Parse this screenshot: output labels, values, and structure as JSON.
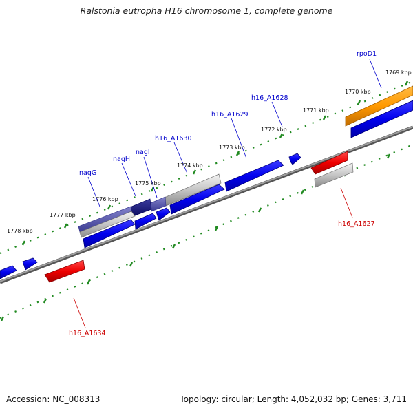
{
  "title": "Ralstonia eutropha H16 chromosome 1, complete genome",
  "footer": {
    "accession": "Accession: NC_008313",
    "summary": "Topology: circular; Length: 4,052,032 bp; Genes: 3,711"
  },
  "colors": {
    "forward_gene": "#0000ee",
    "reverse_gene": "#ee0000",
    "highlight_gene": "#ff9900",
    "tick": "#228b22",
    "backbone": "#808080",
    "label_forward": "#0000cc",
    "label_reverse": "#cc0000"
  },
  "kbp_labels": [
    "1769 kbp",
    "1770 kbp",
    "1771 kbp",
    "1772 kbp",
    "1773 kbp",
    "1774 kbp",
    "1775 kbp",
    "1776 kbp",
    "1777 kbp",
    "1778 kbp"
  ],
  "gene_labels": {
    "forward": [
      "rpoD1",
      "h16_A1628",
      "h16_A1629",
      "h16_A1630",
      "nagI",
      "nagH",
      "nagG"
    ],
    "reverse": [
      "h16_A1627",
      "h16_A1634"
    ]
  }
}
